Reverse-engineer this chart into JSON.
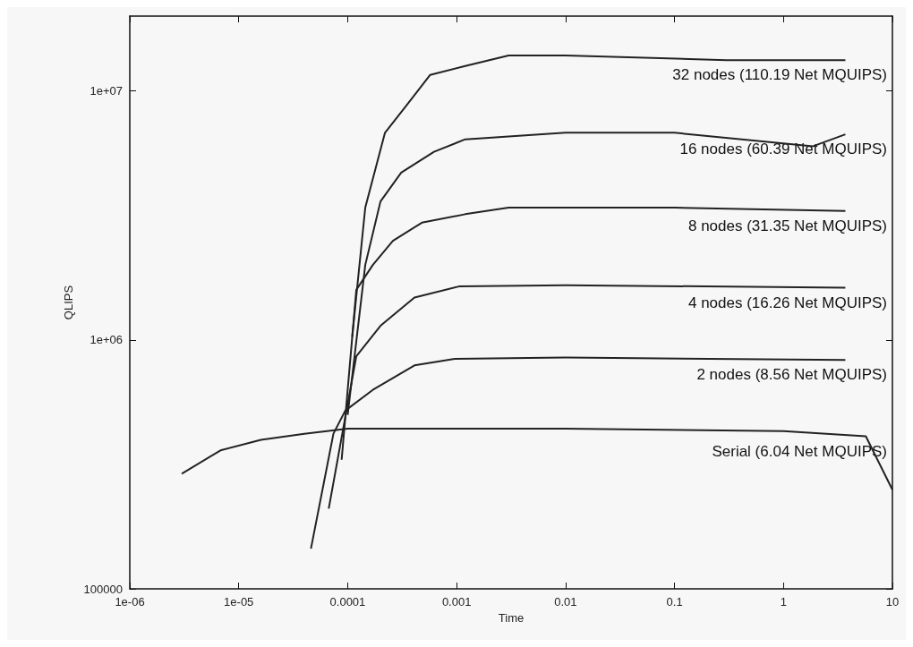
{
  "chart_data": {
    "type": "line",
    "xlabel": "Time",
    "ylabel": "QLIPS",
    "log": "xy",
    "grid": false,
    "legend": false,
    "marker": "none",
    "line_style": "solid",
    "xlim": [
      1e-06,
      10
    ],
    "ylim": [
      100000,
      20000000
    ],
    "xticks": [
      {
        "value": 1e-06,
        "label": "1e-06"
      },
      {
        "value": 1e-05,
        "label": "1e-05"
      },
      0.0001,
      0.001,
      0.01,
      0.1,
      1,
      10
    ],
    "yticks": [
      100000,
      {
        "value": 1000000,
        "label": "1e+06"
      },
      {
        "value": 10000000,
        "label": "1e+07"
      }
    ],
    "series": [
      {
        "name": "32 nodes (110.19 Net MQUIPS)",
        "color": "#222222",
        "x": [
          0.00011,
          0.000145,
          0.00022,
          0.00035,
          0.00057,
          0.0012,
          0.003,
          0.01,
          0.3,
          3.7
        ],
        "values": [
          1030000,
          3400000,
          6800000,
          8800000,
          11600000,
          12600000,
          13900000,
          13900000,
          13300000,
          13300000
        ]
      },
      {
        "name": "16 nodes (60.39 Net MQUIPS)",
        "color": "#222222",
        "x": [
          0.0001,
          0.000145,
          0.0002,
          0.00031,
          0.00062,
          0.0012,
          0.01,
          0.1,
          1.87,
          3.7
        ],
        "values": [
          500000,
          2000000,
          3600000,
          4700000,
          5700000,
          6400000,
          6800000,
          6800000,
          6000000,
          6700000
        ]
      },
      {
        "name": "8 nodes (31.35 Net MQUIPS)",
        "color": "#222222",
        "x": [
          8.8e-05,
          0.00012,
          0.00017,
          0.00026,
          0.00048,
          0.0012,
          0.003,
          0.1,
          3.7
        ],
        "values": [
          330000,
          1590000,
          2000000,
          2500000,
          2960000,
          3200000,
          3400000,
          3400000,
          3300000
        ]
      },
      {
        "name": "4 nodes (16.26 Net MQUIPS)",
        "color": "#222222",
        "x": [
          6.7e-05,
          0.00012,
          0.0002,
          0.00041,
          0.00105,
          0.01,
          3.7
        ],
        "values": [
          210000,
          860000,
          1140000,
          1480000,
          1640000,
          1660000,
          1620000
        ]
      },
      {
        "name": "2 nodes (8.56 Net MQUIPS)",
        "color": "#222222",
        "x": [
          4.6e-05,
          7.4e-05,
          9.5e-05,
          0.00017,
          0.00041,
          0.00096,
          0.01,
          3.7
        ],
        "values": [
          145000,
          420000,
          520000,
          630000,
          790000,
          840000,
          850000,
          830000
        ]
      },
      {
        "name": "Serial (6.04 Net MQUIPS)",
        "color": "#222222",
        "x": [
          3e-06,
          6.8e-06,
          1.6e-05,
          4e-05,
          0.0001,
          0.01,
          1,
          5.7,
          10
        ],
        "values": [
          290000,
          360000,
          397000,
          420000,
          440000,
          440000,
          430000,
          410000,
          250000
        ]
      }
    ]
  }
}
